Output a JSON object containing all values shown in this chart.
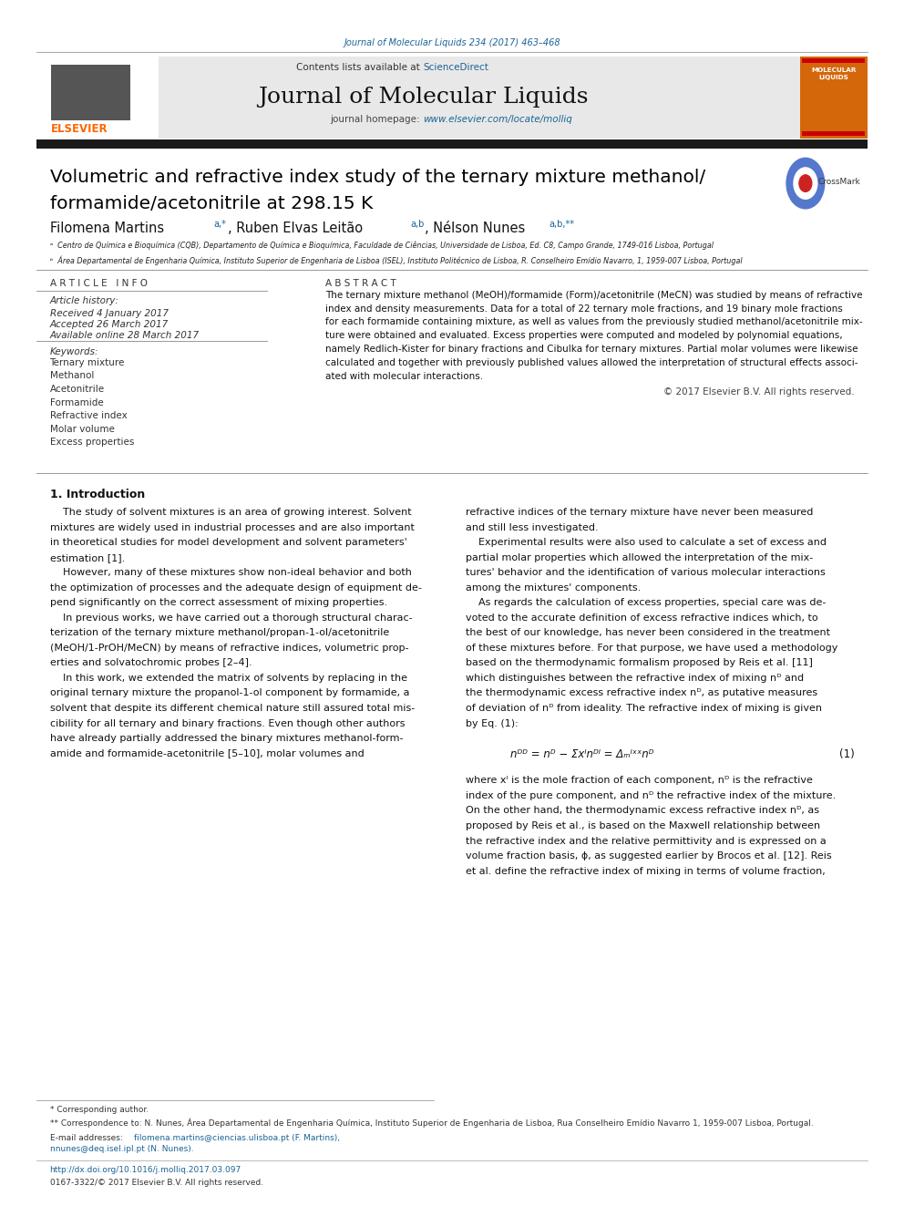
{
  "page_width": 9.92,
  "page_height": 13.23,
  "bg_color": "#ffffff",
  "header_journal_ref": "Journal of Molecular Liquids 234 (2017) 463–468",
  "header_ref_color": "#1a6496",
  "journal_banner_bg": "#e8e8e8",
  "journal_banner_text": "Journal of Molecular Liquids",
  "contents_text": "Contents lists available at ",
  "sciencedirect_text": "ScienceDirect",
  "sciencedirect_color": "#1a6496",
  "homepage_text": "journal homepage: ",
  "homepage_url": "www.elsevier.com/locate/molliq",
  "homepage_url_color": "#1a6496",
  "elsevier_color": "#ff6600",
  "thick_bar_color": "#1a1a1a",
  "article_title_line1": "Volumetric and refractive index study of the ternary mixture methanol/",
  "article_title_line2": "formamide/acetonitrile at 298.15 K",
  "title_color": "#000000",
  "affil_a": "ᵃ  Centro de Química e Bioquímica (CQB), Departamento de Química e Bioquímica, Faculdade de Ciências, Universidade de Lisboa, Ed. C8, Campo Grande, 1749-016 Lisboa, Portugal",
  "affil_b": "ᵇ  Área Departamental de Engenharia Química, Instituto Superior de Engenharia de Lisboa (ISEL), Instituto Politécnico de Lisboa, R. Conselheiro Emídio Navarro, 1, 1959-007 Lisboa, Portugal",
  "article_info_header": "A R T I C L E   I N F O",
  "abstract_header": "A B S T R A C T",
  "article_history_label": "Article history:",
  "received": "Received 4 January 2017",
  "accepted": "Accepted 26 March 2017",
  "available": "Available online 28 March 2017",
  "keywords_label": "Keywords:",
  "keywords": [
    "Ternary mixture",
    "Methanol",
    "Acetonitrile",
    "Formamide",
    "Refractive index",
    "Molar volume",
    "Excess properties"
  ],
  "copyright": "© 2017 Elsevier B.V. All rights reserved.",
  "intro_header": "1. Introduction",
  "footnote_star": "* Corresponding author.",
  "footnote_dstar": "** Correspondence to: N. Nunes, Área Departamental de Engenharia Química, Instituto Superior de Engenharia de Lisboa, Rua Conselheiro Emídio Navarro 1, 1959-007 Lisboa, Portugal.",
  "footnote_email1": "filomena.martins@ciencias.ulisboa.pt (F. Martins),",
  "footnote_email2": "nnunes@deq.isel.ipl.pt (N. Nunes).",
  "footnote_email_color": "#1a6496",
  "doi_text": "http://dx.doi.org/10.1016/j.molliq.2017.03.097",
  "doi_color": "#1a6496",
  "issn_text": "0167-3322/© 2017 Elsevier B.V. All rights reserved."
}
